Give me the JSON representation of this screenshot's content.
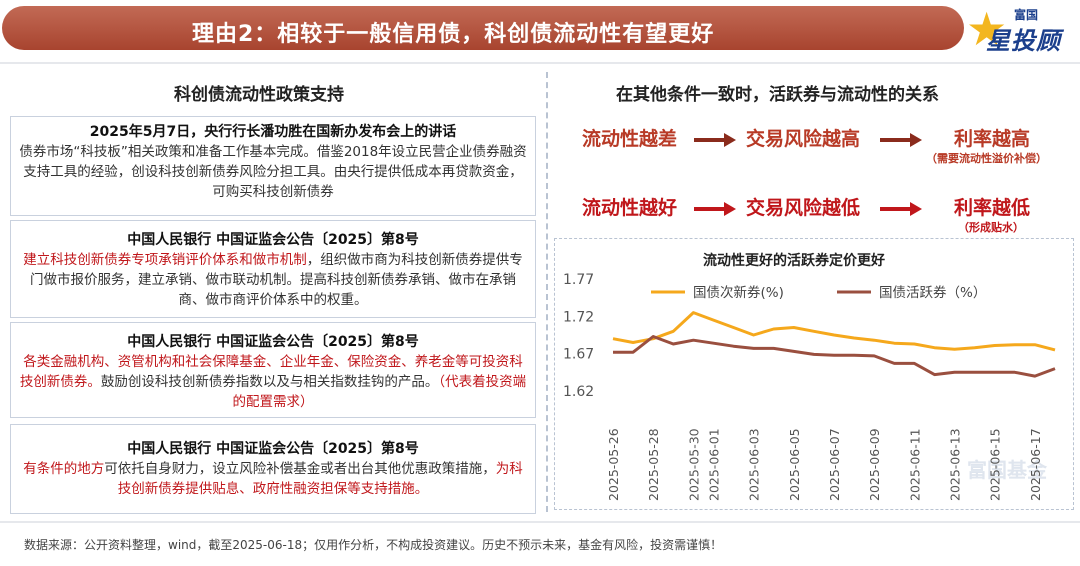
{
  "banner": {
    "title": "理由2：相较于一般信用债，科创债流动性有望更好"
  },
  "logo": {
    "small": "富国",
    "big": "星投顾"
  },
  "left": {
    "section_title": "科创债流动性政策支持",
    "cards": [
      {
        "head": "2025年5月7日，央行行长潘功胜在国新办发布会上的讲话",
        "body": "债券市场“科技板”相关政策和准备工作基本完成。借鉴2018年设立民营企业债券融资支持工具的经验，创设科技创新债券风险分担工具。由央行提供低成本再贷款资金，可购买科技创新债券"
      },
      {
        "head": "中国人民银行 中国证监会公告〔2025〕第8号",
        "body_red": "建立科技创新债券专项承销评价体系和做市机制",
        "body": "，组织做市商为科技创新债券提供专门做市报价服务，建立承销、做市联动机制。提高科技创新债券承销、做市在承销商、做市商评价体系中的权重。"
      },
      {
        "head": "中国人民银行 中国证监会公告〔2025〕第8号",
        "body_red": "各类金融机构、资管机构和社会保障基金、企业年金、保险资金、养老金等可投资科技创新债券。",
        "body": "鼓励创设科技创新债券指数以及与相关指数挂钩的产品。",
        "body_red2": "（代表着投资端的配置需求）"
      },
      {
        "head": "中国人民银行 中国证监会公告〔2025〕第8号",
        "body_red": "有条件的地方",
        "body": "可依托自身财力，设立风险补偿基金或者出台其他优惠政策措施，",
        "body_red2": "为科技创新债券提供贴息、政府性融资担保等支持措施。"
      }
    ]
  },
  "right": {
    "section_title": "在其他条件一致时，活跃券与流动性的关系",
    "row1": {
      "a": "流动性越差",
      "b": "交易风险越高",
      "c": "利率越高",
      "note": "（需要流动性溢价补偿）"
    },
    "row2": {
      "a": "流动性越好",
      "b": "交易风险越低",
      "c": "利率越低",
      "note": "（形成贴水）"
    }
  },
  "chart_data": {
    "type": "line",
    "title": "流动性更好的活跃券定价更好",
    "ylim": [
      1.62,
      1.77
    ],
    "yticks": [
      "1.77",
      "1.72",
      "1.67",
      "1.62"
    ],
    "x": [
      "2025-05-26",
      "2025-05-27",
      "2025-05-28",
      "2025-05-29",
      "2025-05-30",
      "2025-06-01",
      "2025-06-02",
      "2025-06-03",
      "2025-06-04",
      "2025-06-05",
      "2025-06-06",
      "2025-06-07",
      "2025-06-08",
      "2025-06-09",
      "2025-06-10",
      "2025-06-11",
      "2025-06-12",
      "2025-06-13",
      "2025-06-14",
      "2025-06-15",
      "2025-06-16",
      "2025-06-17",
      "2025-06-18"
    ],
    "xticks": [
      "2025-05-26",
      "2025-05-28",
      "2025-05-30",
      "2025-06-01",
      "2025-06-03",
      "2025-06-05",
      "2025-06-07",
      "2025-06-09",
      "2025-06-11",
      "2025-06-13",
      "2025-06-15",
      "2025-06-17"
    ],
    "series": [
      {
        "name": "国债次新券(%)",
        "color": "#f5a81c",
        "values": [
          1.69,
          1.685,
          1.69,
          1.7,
          1.725,
          1.715,
          1.705,
          1.695,
          1.703,
          1.705,
          1.7,
          1.695,
          1.691,
          1.688,
          1.684,
          1.683,
          1.678,
          1.676,
          1.678,
          1.681,
          1.682,
          1.682,
          1.675
        ]
      },
      {
        "name": "国债活跃券（%）",
        "color": "#9a4f3f",
        "values": [
          1.672,
          1.672,
          1.693,
          1.683,
          1.688,
          1.684,
          1.68,
          1.677,
          1.677,
          1.673,
          1.669,
          1.668,
          1.668,
          1.667,
          1.657,
          1.657,
          1.642,
          1.645,
          1.645,
          1.645,
          1.645,
          1.64,
          1.65
        ]
      }
    ]
  },
  "watermark": "富国基金",
  "footer": {
    "text": "数据来源：公开资料整理，wind，截至2025-06-18；仅用作分析，不构成投资建议。历史不预示未来，基金有风险，投资需谨慎！"
  },
  "colors": {
    "banner": "#a8442f",
    "arrow_dark": "#8a2b1c",
    "arrow_red": "#c0171b",
    "orange": "#f5a81c",
    "brown": "#9a4f3f"
  }
}
